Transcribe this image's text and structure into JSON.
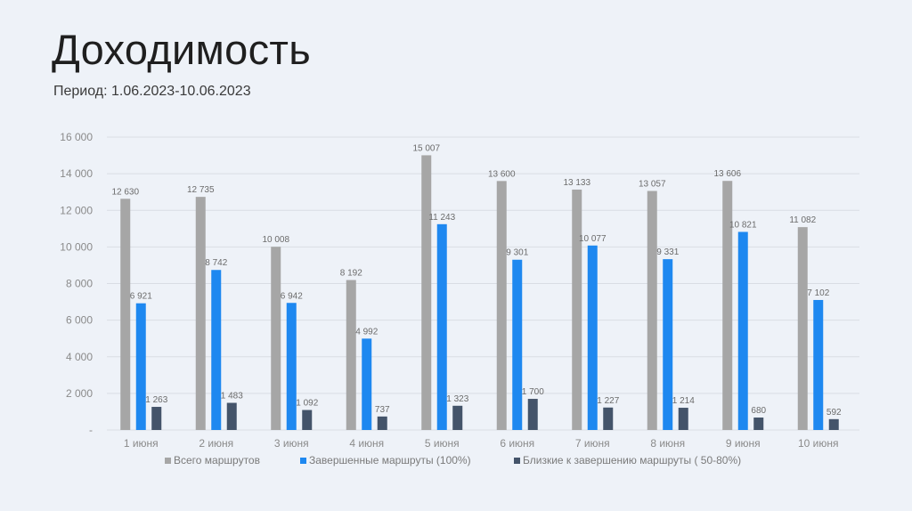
{
  "page": {
    "title": "Доходимость",
    "subtitle": "Период: 1.06.2023-10.06.2023"
  },
  "chart_data": {
    "type": "bar",
    "title": "",
    "xlabel": "",
    "ylabel": "",
    "ylim": [
      0,
      16000
    ],
    "y_ticks": [
      0,
      2000,
      4000,
      6000,
      8000,
      10000,
      12000,
      14000,
      16000
    ],
    "y_tick_labels": [
      "-",
      "2 000",
      "4 000",
      "6 000",
      "8 000",
      "10 000",
      "12 000",
      "14 000",
      "16 000"
    ],
    "grid": true,
    "legend_position": "bottom",
    "categories": [
      "1  июня",
      "2  июня",
      "3  июня",
      "4  июня",
      "5  июня",
      "6  июня",
      "7  июня",
      "8  июня",
      "9  июня",
      "10  июня"
    ],
    "series": [
      {
        "name": "Всего маршрутов",
        "color": "#a6a6a6",
        "values": [
          12630,
          12735,
          10008,
          8192,
          15007,
          13600,
          13133,
          13057,
          13606,
          11082
        ],
        "labels": [
          "12 630",
          "12 735",
          "10 008",
          "8 192",
          "15 007",
          "13 600",
          "13 133",
          "13 057",
          "13 606",
          "11 082"
        ]
      },
      {
        "name": "Завершенные маршруты  (100%)",
        "color": "#1e88f0",
        "values": [
          6921,
          8742,
          6942,
          4992,
          11243,
          9301,
          10077,
          9331,
          10821,
          7102
        ],
        "labels": [
          "6 921",
          "8 742",
          "6 942",
          "4 992",
          "11 243",
          "9 301",
          "10 077",
          "9 331",
          "10 821",
          "7 102"
        ]
      },
      {
        "name": "Близкие к завершению маршруты ( 50-80%)",
        "color": "#44546a",
        "values": [
          1263,
          1483,
          1092,
          737,
          1323,
          1700,
          1227,
          1214,
          680,
          592
        ],
        "labels": [
          "1 263",
          "1 483",
          "1 092",
          "737",
          "1 323",
          "1 700",
          "1 227",
          "1 214",
          "680",
          "592"
        ]
      }
    ]
  }
}
